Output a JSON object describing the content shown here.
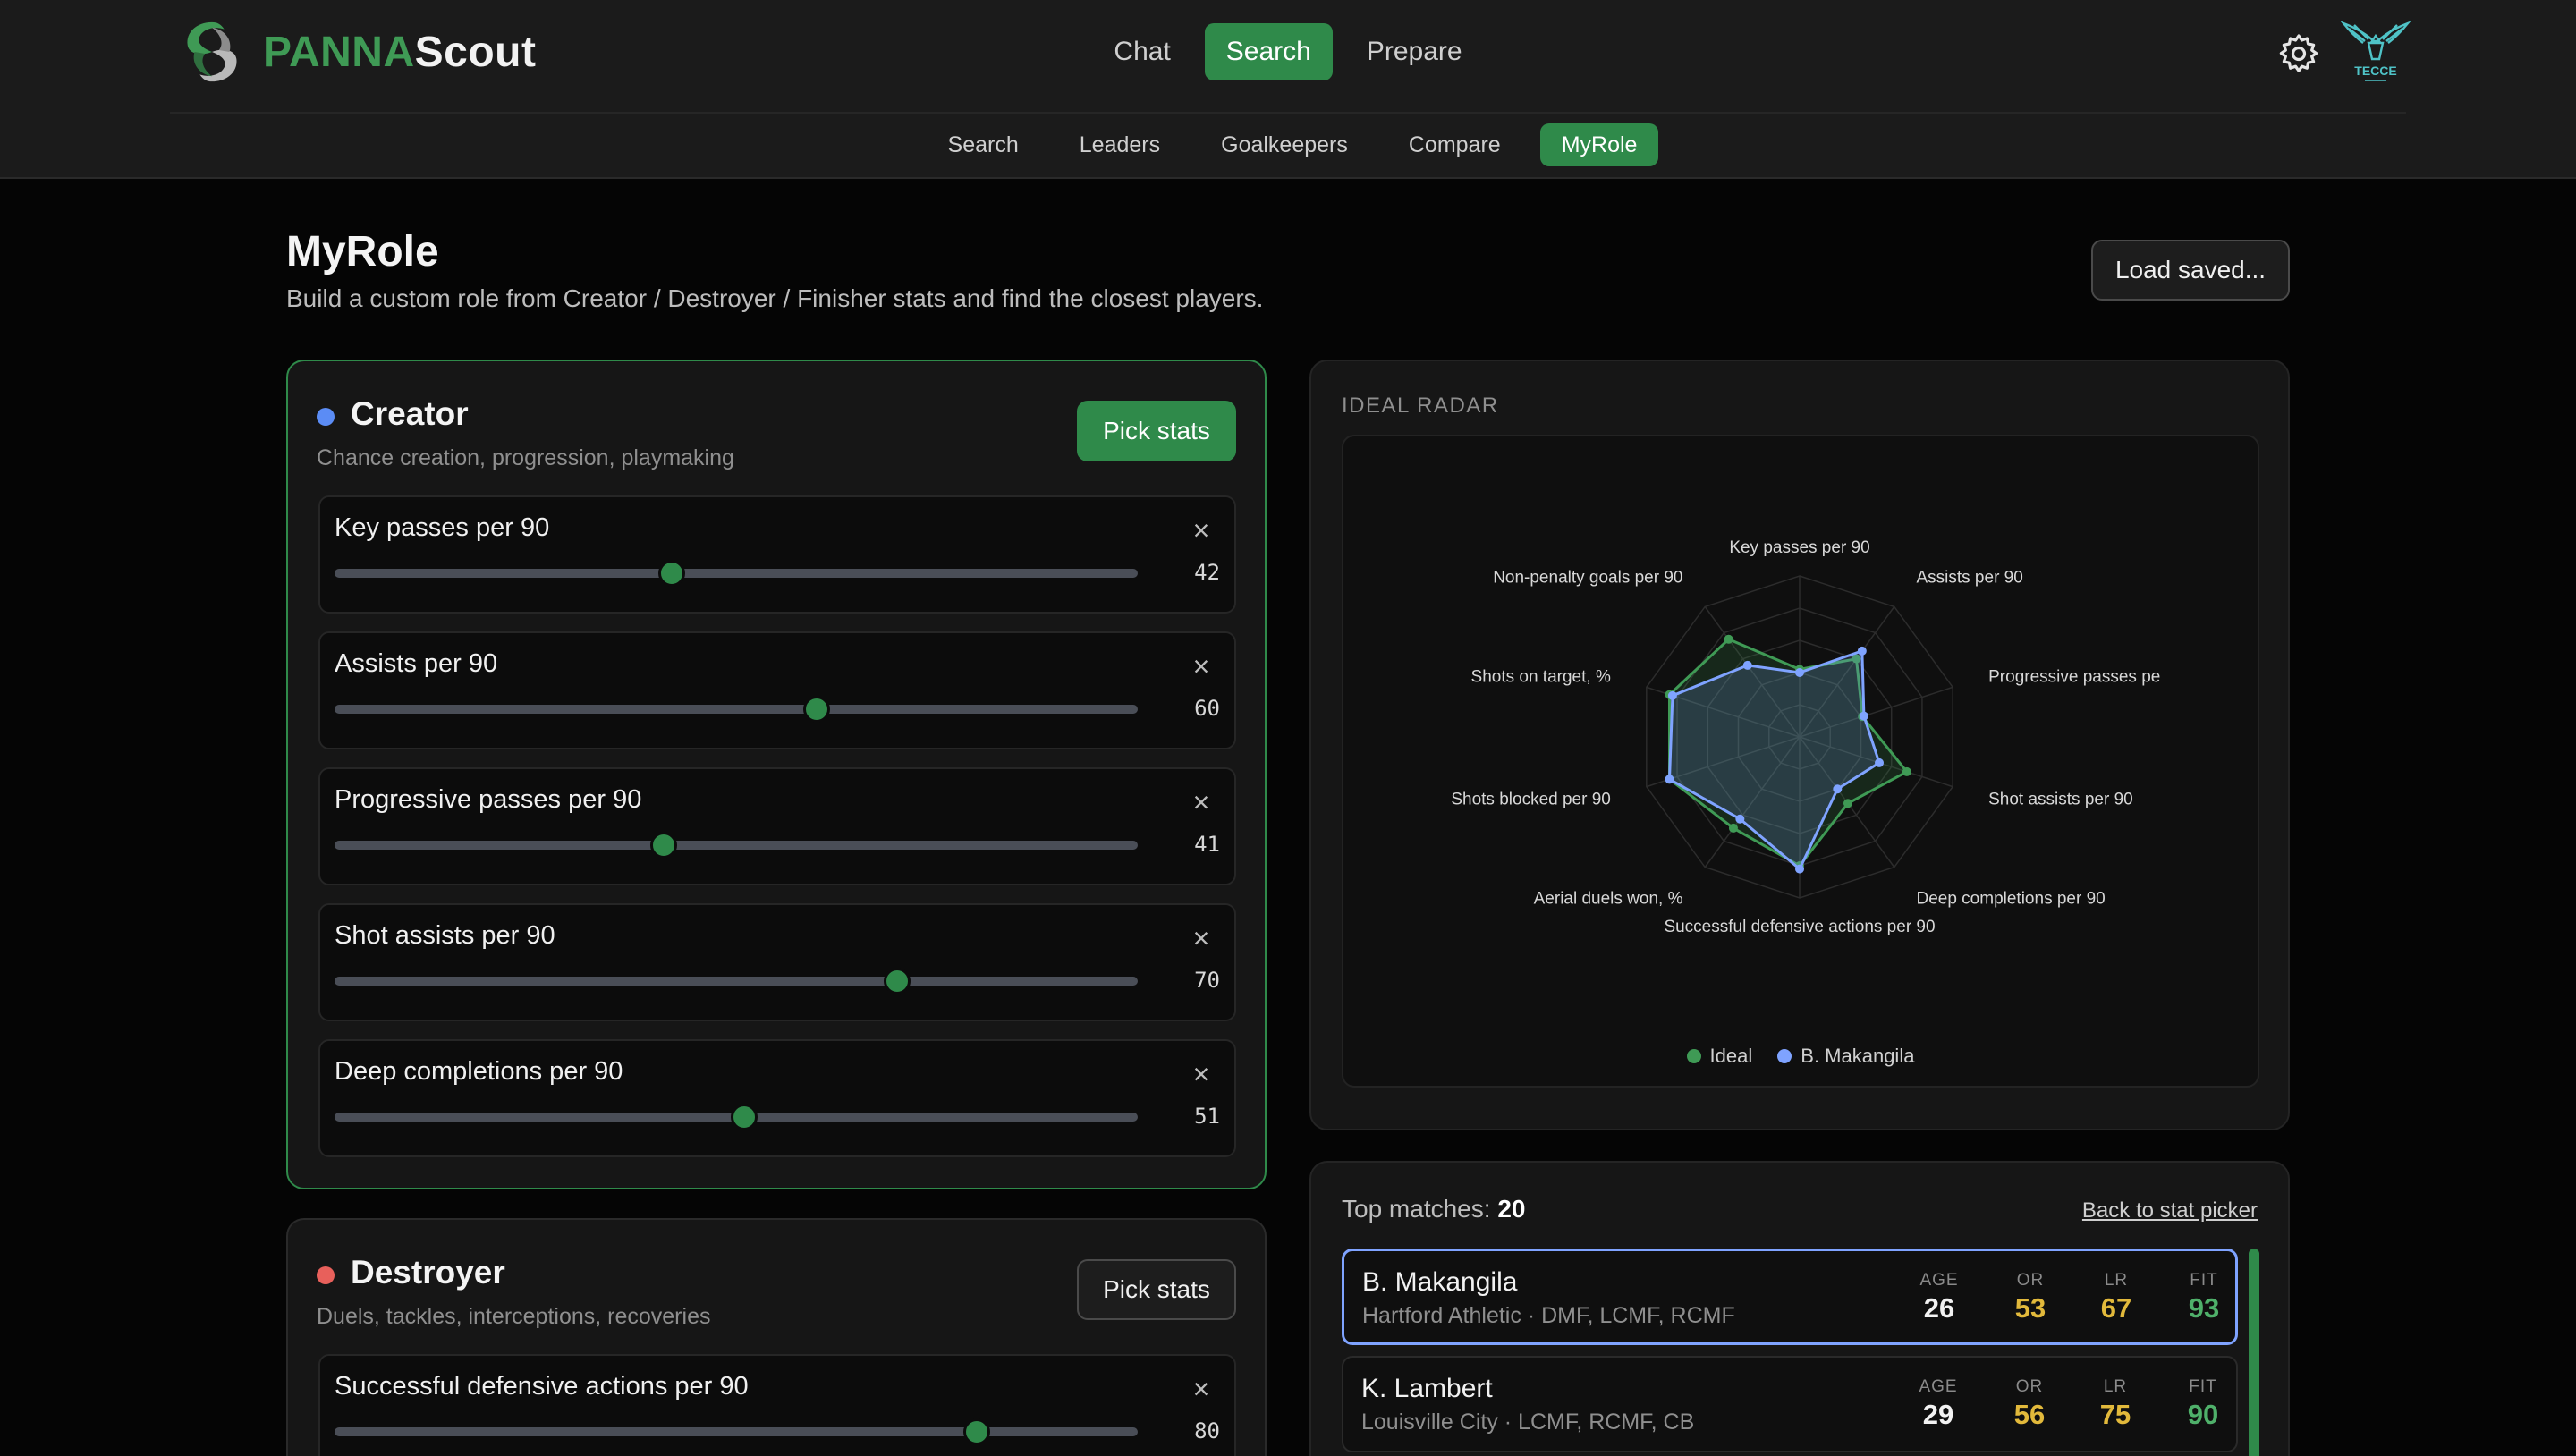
{
  "brand": {
    "part1": "PANNA",
    "part2": "Scout"
  },
  "main_nav": [
    {
      "label": "Chat",
      "active": false
    },
    {
      "label": "Search",
      "active": true
    },
    {
      "label": "Prepare",
      "active": false
    }
  ],
  "sub_nav": [
    {
      "label": "Search",
      "active": false
    },
    {
      "label": "Leaders",
      "active": false
    },
    {
      "label": "Goalkeepers",
      "active": false
    },
    {
      "label": "Compare",
      "active": false
    },
    {
      "label": "MyRole",
      "active": true
    }
  ],
  "club_crest": {
    "text": "TECCE"
  },
  "page": {
    "title": "MyRole",
    "subtitle": "Build a custom role from Creator / Destroyer / Finisher stats and find the closest players.",
    "load_saved": "Load saved..."
  },
  "creator": {
    "name": "Creator",
    "description": "Chance creation, progression, playmaking",
    "dot_color": "#5b8cf5",
    "pick_label": "Pick stats",
    "stats": [
      {
        "label": "Key passes per 90",
        "value": 42
      },
      {
        "label": "Assists per 90",
        "value": 60
      },
      {
        "label": "Progressive passes per 90",
        "value": 41
      },
      {
        "label": "Shot assists per 90",
        "value": 70
      },
      {
        "label": "Deep completions per 90",
        "value": 51
      }
    ]
  },
  "destroyer": {
    "name": "Destroyer",
    "description": "Duels, tackles, interceptions, recoveries",
    "dot_color": "#e8605b",
    "pick_label": "Pick stats",
    "stats": [
      {
        "label": "Successful defensive actions per 90",
        "value": 80
      }
    ]
  },
  "radar": {
    "heading": "IDEAL RADAR",
    "axes": [
      "Key passes per 90",
      "Assists per 90",
      "Progressive passes pe",
      "Shot assists per 90",
      "Deep completions per 90",
      "Successful defensive actions per 90",
      "Aerial duels won, %",
      "Shots blocked per 90",
      "Shots on target, %",
      "Non-penalty goals per 90"
    ],
    "series": [
      {
        "name": "Ideal",
        "color": "#3f9a55",
        "values": [
          42,
          60,
          41,
          70,
          51,
          80,
          70,
          85,
          85,
          75
        ]
      },
      {
        "name": "B. Makangila",
        "color": "#7fa3ff",
        "values": [
          40,
          66,
          42,
          52,
          40,
          82,
          63,
          85,
          83,
          55
        ]
      }
    ],
    "max": 100,
    "rings": 5
  },
  "matches": {
    "heading_prefix": "Top matches:",
    "count": "20",
    "back_link": "Back to stat picker",
    "metric_labels": {
      "age": "AGE",
      "or": "OR",
      "lr": "LR",
      "fit": "FIT"
    },
    "metric_colors": {
      "age": "#f2f2f2",
      "or": "#e2b93b",
      "lr": "#e2b93b",
      "fit": "#4fb06a"
    },
    "items": [
      {
        "name": "B. Makangila",
        "meta": "Hartford Athletic · DMF, LCMF, RCMF",
        "age": "26",
        "or": "53",
        "lr": "67",
        "fit": "93",
        "selected": true
      },
      {
        "name": "K. Lambert",
        "meta": "Louisville City · LCMF, RCMF, CB",
        "age": "29",
        "or": "56",
        "lr": "75",
        "fit": "90",
        "selected": false
      }
    ]
  }
}
